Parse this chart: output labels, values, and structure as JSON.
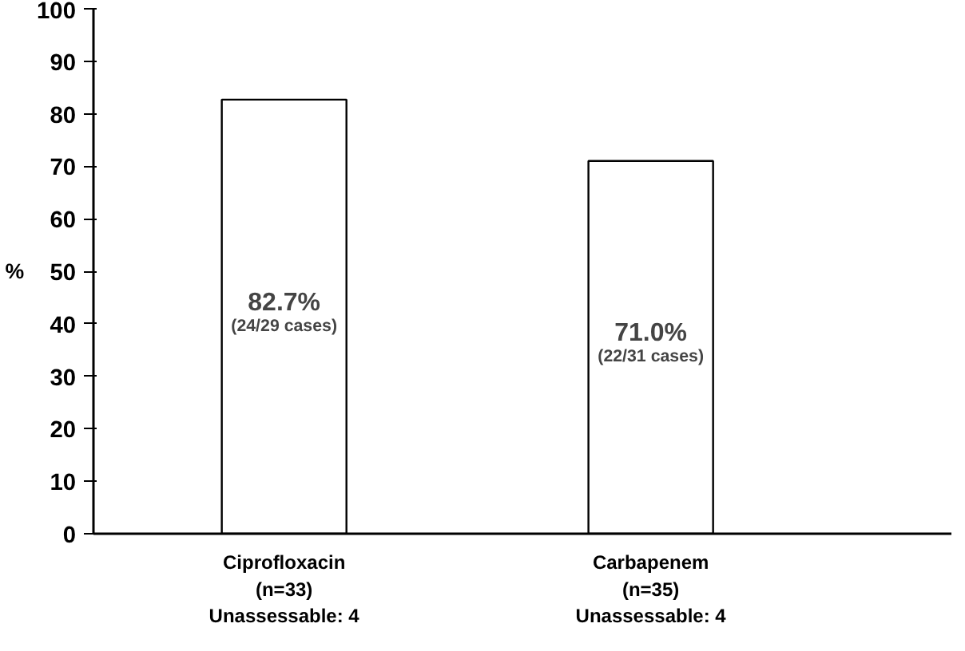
{
  "chart_data": {
    "type": "bar",
    "categories": [
      "Ciprofloxacin\n(n=33)\nUnassessable: 4",
      "Carbapenem\n(n=35)\nUnassessable: 4"
    ],
    "values": [
      82.7,
      71.0
    ],
    "value_labels": [
      "82.7%\n(24/29 cases)",
      "71.0%\n(22/31 cases)"
    ],
    "color": "#ffffff",
    "ylabel": "%",
    "ylim": [
      0,
      100
    ],
    "yticks": [
      0,
      10,
      20,
      30,
      40,
      50,
      60,
      70,
      80,
      90,
      100
    ],
    "grid": false
  }
}
